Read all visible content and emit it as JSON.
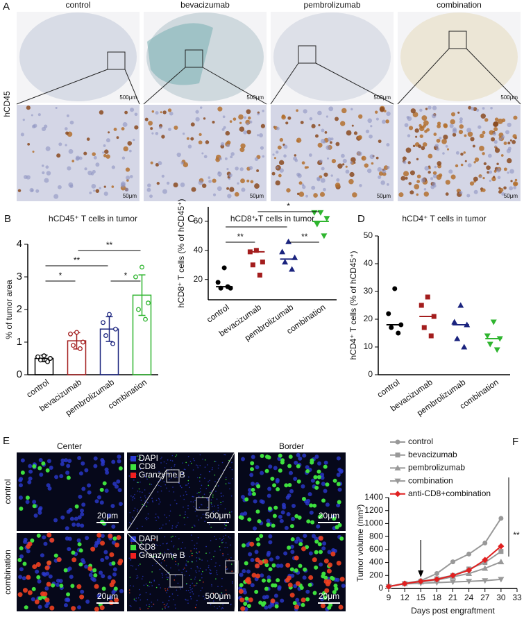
{
  "panels": {
    "A": {
      "letter": "A",
      "columns": [
        "control",
        "bevacizumab",
        "pembrolizumab",
        "combination"
      ],
      "row_label": "hCD45",
      "scale_top": [
        "500μm",
        "500μm",
        "500μm",
        "500μm"
      ],
      "scale_bottom": [
        "50μm",
        "50μm",
        "50μm",
        "50μm"
      ]
    },
    "E": {
      "letter": "E",
      "columns": [
        "Center",
        "Border"
      ],
      "rows": [
        "control",
        "combination"
      ],
      "legend": [
        [
          "DAPI",
          "CD8",
          "Granzyme B"
        ],
        [
          "DAPI",
          "CD8",
          "Granzyme B"
        ]
      ],
      "scale_bars": [
        [
          "20μm",
          "500μm",
          "20μm"
        ],
        [
          "20μm",
          "500μm",
          "20μm"
        ]
      ]
    }
  },
  "chart_data": [
    {
      "panel": "B",
      "type": "bar",
      "title": "hCD45⁺ T cells in tumor",
      "ylabel": "% of tumor area",
      "categories": [
        "control",
        "bevacizumab",
        "pembrolizumab",
        "combination"
      ],
      "colors": [
        "#000000",
        "#a31d1d",
        "#1a237e",
        "#2fb52f"
      ],
      "values": [
        0.5,
        1.04,
        1.4,
        2.44
      ],
      "errors": [
        0.1,
        0.25,
        0.38,
        0.62
      ],
      "points": [
        [
          0.58,
          0.55,
          0.5,
          0.45,
          0.4
        ],
        [
          1.3,
          1.25,
          1.0,
          0.9,
          0.8
        ],
        [
          1.85,
          1.6,
          1.4,
          1.2,
          0.95
        ],
        [
          3.3,
          3.0,
          2.2,
          2.0,
          1.7
        ]
      ],
      "ylim": [
        0,
        4
      ],
      "yticks": [
        0,
        1,
        2,
        3,
        4
      ],
      "comparisons": [
        {
          "pair": [
            1,
            3
          ],
          "label": "**"
        },
        {
          "pair": [
            0,
            2
          ],
          "label": "**"
        },
        {
          "pair": [
            0,
            1
          ],
          "label": "*"
        },
        {
          "pair": [
            2,
            3
          ],
          "label": "*"
        }
      ]
    },
    {
      "panel": "C",
      "type": "dot",
      "title": "hCD8⁺ T cells in tumor",
      "ylabel": "hCD8⁺ T cells (% of hCD45⁺)",
      "categories": [
        "control",
        "bevacizumab",
        "pembrolizumab",
        "combination"
      ],
      "colors": [
        "#000000",
        "#a31d1d",
        "#1a237e",
        "#2fb52f"
      ],
      "markers": [
        "circle",
        "square",
        "triangle-up",
        "triangle-down"
      ],
      "values": [
        15,
        39,
        34,
        60
      ],
      "points": [
        [
          28,
          18,
          14,
          14,
          15
        ],
        [
          40,
          39,
          32,
          30,
          23
        ],
        [
          46,
          39,
          35,
          32,
          27
        ],
        [
          66,
          66,
          62,
          58,
          50
        ]
      ],
      "ylim": [
        6,
        70
      ],
      "yticks": [
        20,
        40,
        60
      ],
      "comparisons": [
        {
          "pair": [
            1,
            3
          ],
          "label": "*"
        },
        {
          "pair": [
            0,
            2
          ],
          "label": "*"
        },
        {
          "pair": [
            0,
            1
          ],
          "label": "**"
        },
        {
          "pair": [
            2,
            3
          ],
          "label": "**"
        }
      ]
    },
    {
      "panel": "D",
      "type": "dot",
      "title": "hCD4⁺ T cells in tumor",
      "ylabel": "hCD4⁺ T cells (% of hCD45⁺)",
      "categories": [
        "control",
        "bevacizumab",
        "pembrolizumab",
        "combination"
      ],
      "colors": [
        "#000000",
        "#a31d1d",
        "#1a237e",
        "#2fb52f"
      ],
      "markers": [
        "circle",
        "square",
        "triangle-up",
        "triangle-down"
      ],
      "values": [
        18,
        21,
        18,
        13
      ],
      "points": [
        [
          31,
          22,
          18,
          17,
          15
        ],
        [
          28,
          25,
          21,
          17,
          14
        ],
        [
          25,
          19,
          18,
          13,
          10
        ],
        [
          19,
          14,
          13,
          11,
          9
        ]
      ],
      "ylim": [
        0,
        50
      ],
      "yticks": [
        0,
        10,
        20,
        30,
        40,
        50
      ],
      "comparisons": []
    },
    {
      "panel": "F",
      "type": "line",
      "xlabel": "Days post engraftment",
      "ylabel": "Tumor volume (mm³)",
      "x": [
        9,
        12,
        15,
        18,
        21,
        24,
        27,
        30
      ],
      "xlim": [
        9,
        33
      ],
      "xticks": [
        9,
        12,
        15,
        18,
        21,
        24,
        27,
        30,
        33
      ],
      "ylim": [
        0,
        1400
      ],
      "yticks": [
        0,
        200,
        400,
        600,
        800,
        1000,
        1200,
        1400
      ],
      "arrow_x": 15,
      "annotation": "**",
      "series": [
        {
          "name": "control",
          "color": "#999999",
          "marker": "circle",
          "values": [
            30,
            80,
            120,
            230,
            410,
            530,
            700,
            1080
          ]
        },
        {
          "name": "bevacizumab",
          "color": "#999999",
          "marker": "square",
          "values": [
            30,
            75,
            110,
            150,
            200,
            300,
            400,
            570
          ]
        },
        {
          "name": "pembrolizumab",
          "color": "#999999",
          "marker": "triangle-up",
          "values": [
            30,
            75,
            100,
            130,
            180,
            230,
            310,
            410
          ]
        },
        {
          "name": "combination",
          "color": "#999999",
          "marker": "triangle-down",
          "values": [
            30,
            70,
            80,
            90,
            100,
            110,
            120,
            140
          ]
        },
        {
          "name": "anti-CD8+combination",
          "color": "#e02020",
          "marker": "diamond",
          "values": [
            30,
            75,
            110,
            140,
            200,
            280,
            440,
            650
          ]
        }
      ]
    }
  ]
}
